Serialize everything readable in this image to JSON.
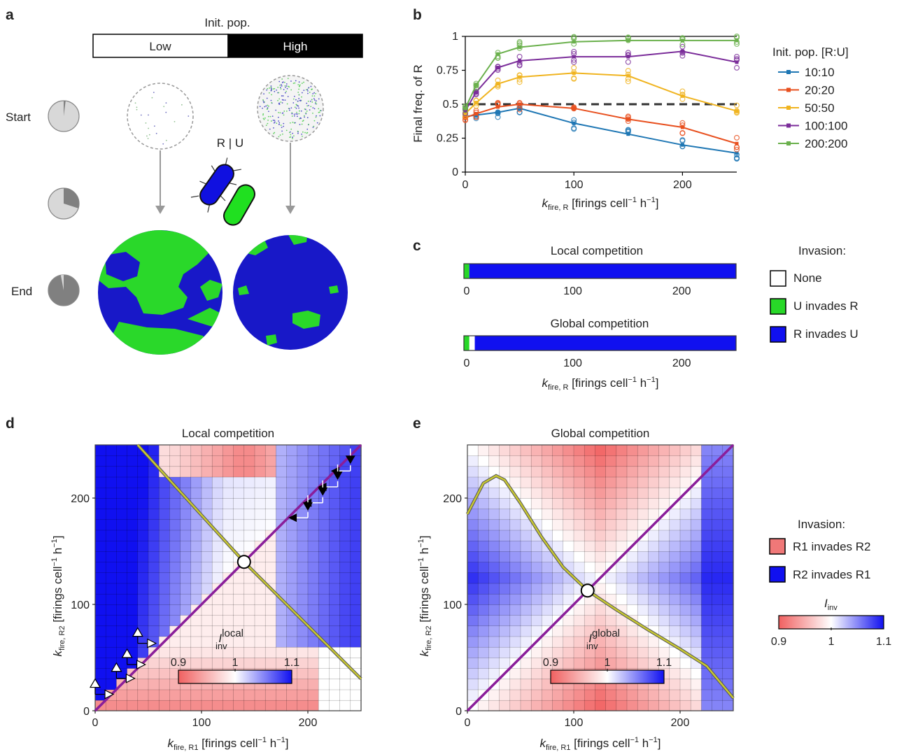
{
  "panel_labels": [
    "a",
    "b",
    "c",
    "d",
    "e"
  ],
  "panel_a": {
    "init_pop_title": "Init. pop.",
    "low_label": "Low",
    "high_label": "High",
    "row_labels": [
      "Start",
      "End"
    ],
    "strain_label": "R | U",
    "time_fractions": [
      0.02,
      0.3,
      0.97
    ],
    "colors": {
      "R": "#1010c8",
      "U": "#28d828"
    }
  },
  "axis_text": {
    "k_symbol": "k",
    "sub_fire_R": "fire, R",
    "sub_fire_R1": "fire, R1",
    "sub_fire_R2": "fire, R2",
    "unit_text": " [firings cell",
    "unit_close": "]",
    "exp_minus1": "−1",
    "h_text": " h"
  },
  "chart_data": [
    {
      "panel": "b",
      "type": "line",
      "ylabel": "Final freq. of R",
      "x": [
        0,
        10,
        30,
        50,
        100,
        150,
        200,
        250
      ],
      "xlim": [
        0,
        250
      ],
      "ylim": [
        0,
        1
      ],
      "xticks": [
        0,
        100,
        200
      ],
      "yticks": [
        0,
        0.25,
        0.5,
        0.75,
        1
      ],
      "ytick_labels": [
        "0",
        "0.25",
        "0.5",
        "0.75",
        "1"
      ],
      "reference_line": 0.5,
      "legend_title": "Init. pop. [R:U]",
      "series": [
        {
          "name": "10:10",
          "color": "#1f77b4",
          "values": [
            0.41,
            0.42,
            0.44,
            0.47,
            0.36,
            0.28,
            0.2,
            0.14
          ]
        },
        {
          "name": "20:20",
          "color": "#e8501f",
          "values": [
            0.4,
            0.43,
            0.48,
            0.5,
            0.47,
            0.39,
            0.33,
            0.21
          ]
        },
        {
          "name": "50:50",
          "color": "#f0b420",
          "values": [
            0.43,
            0.51,
            0.65,
            0.7,
            0.73,
            0.71,
            0.56,
            0.45
          ]
        },
        {
          "name": "100:100",
          "color": "#7b2d9a",
          "values": [
            0.45,
            0.59,
            0.77,
            0.82,
            0.85,
            0.85,
            0.89,
            0.81
          ]
        },
        {
          "name": "200:200",
          "color": "#6ab04c",
          "values": [
            0.47,
            0.64,
            0.87,
            0.92,
            0.96,
            0.97,
            0.97,
            0.97
          ]
        }
      ]
    },
    {
      "panel": "c",
      "type": "bar",
      "xlim": [
        0,
        250
      ],
      "xticks": [
        0,
        100,
        200
      ],
      "rows": [
        {
          "title": "Local competition",
          "segments": [
            {
              "from": 0,
              "to": 5,
              "color": "#28d828"
            },
            {
              "from": 5,
              "to": 250,
              "color": "#1010f0"
            }
          ]
        },
        {
          "title": "Global competition",
          "segments": [
            {
              "from": 0,
              "to": 5,
              "color": "#28d828"
            },
            {
              "from": 5,
              "to": 10,
              "color": "#ffffff"
            },
            {
              "from": 10,
              "to": 250,
              "color": "#1010f0"
            }
          ]
        }
      ],
      "legend_title": "Invasion:",
      "legend": [
        {
          "name": "None",
          "color": "#ffffff"
        },
        {
          "name": "U invades R",
          "color": "#28d828"
        },
        {
          "name": "R invades U",
          "color": "#1010f0"
        }
      ]
    },
    {
      "panel": "d",
      "type": "heatmap",
      "title": "Local competition",
      "xlim": [
        0,
        250
      ],
      "ylim": [
        0,
        250
      ],
      "xticks": [
        0,
        100,
        200
      ],
      "yticks": [
        0,
        100,
        200
      ],
      "colorbar_symbol": "I",
      "colorbar_sup": "local",
      "colorbar_sub": "inv",
      "colorbar_range": [
        0.9,
        1.1
      ],
      "colorbar_ticks": [
        "0.9",
        "1",
        "1.1"
      ],
      "intersection": [
        140,
        140
      ],
      "curve": [
        [
          40,
          250
        ],
        [
          140,
          140
        ],
        [
          250,
          30
        ]
      ]
    },
    {
      "panel": "e",
      "type": "heatmap",
      "title": "Global competition",
      "xlim": [
        0,
        250
      ],
      "ylim": [
        0,
        250
      ],
      "xticks": [
        0,
        100,
        200
      ],
      "yticks": [
        0,
        100,
        200
      ],
      "colorbar_symbol": "I",
      "colorbar_sup": "global",
      "colorbar_sub": "inv",
      "colorbar_range": [
        0.9,
        1.1
      ],
      "colorbar_ticks": [
        "0.9",
        "1",
        "1.1"
      ],
      "intersection": [
        113,
        113
      ],
      "curve": [
        [
          0,
          185
        ],
        [
          15,
          214
        ],
        [
          27,
          221
        ],
        [
          35,
          217
        ],
        [
          50,
          195
        ],
        [
          70,
          163
        ],
        [
          90,
          135
        ],
        [
          113,
          113
        ],
        [
          140,
          95
        ],
        [
          170,
          76
        ],
        [
          200,
          58
        ],
        [
          225,
          42
        ],
        [
          240,
          24
        ],
        [
          250,
          12
        ]
      ]
    }
  ],
  "heatmap_legend": {
    "title": "Invasion:",
    "items": [
      {
        "name": "R1 invades R2",
        "color": "#f07878"
      },
      {
        "name": "R2 invades R1",
        "color": "#1010f0"
      }
    ],
    "colorbar_symbol": "I",
    "colorbar_sub": "inv",
    "colorbar_ticks": [
      "0.9",
      "1",
      "1.1"
    ]
  },
  "colors": {
    "diagonal": "#8a1e9a",
    "curve": "#c8c832",
    "red": "#f05050",
    "blue": "#1010f0"
  }
}
